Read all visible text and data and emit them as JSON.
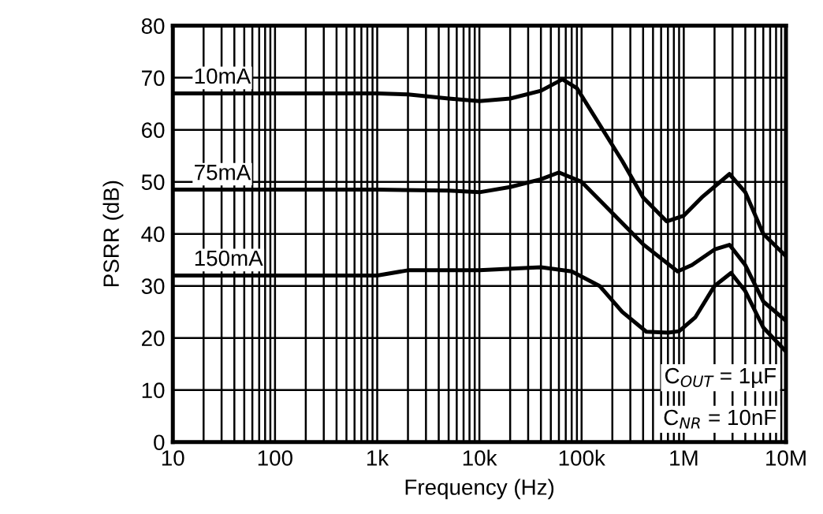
{
  "chart_data": {
    "type": "line",
    "xlabel": "Frequency (Hz)",
    "ylabel": "PSRR (dB)",
    "log": "x",
    "grid": true,
    "legend": false,
    "marker": "none",
    "line_style": "solid",
    "xlim": [
      10,
      10000000
    ],
    "ylim": [
      0,
      80
    ],
    "xticks": [
      10,
      100,
      {
        "value": 1000,
        "label": "1k"
      },
      {
        "value": 10000,
        "label": "10k"
      },
      {
        "value": 100000,
        "label": "100k"
      },
      {
        "value": 1000000,
        "label": "1M"
      },
      {
        "value": 10000000,
        "label": "10M"
      }
    ],
    "yticks": [
      0,
      10,
      20,
      30,
      40,
      50,
      60,
      70,
      80
    ],
    "series": [
      {
        "name": "10mA",
        "color": "#000000",
        "x": [
          10,
          100,
          1000,
          2000,
          5000,
          10000,
          20000,
          40000,
          65000,
          90000,
          150000,
          250000,
          400000,
          680000,
          1000000,
          1500000,
          2800000,
          4000000,
          6000000,
          10000000
        ],
        "values": [
          67,
          67,
          67,
          66.8,
          66,
          65.5,
          66,
          67.5,
          69.7,
          68,
          61,
          54,
          47,
          42.4,
          43.5,
          47,
          51.5,
          48,
          40,
          35.7
        ]
      },
      {
        "name": "75mA",
        "color": "#000000",
        "x": [
          10,
          100,
          1000,
          5000,
          10000,
          20000,
          40000,
          60000,
          100000,
          200000,
          400000,
          870000,
          1200000,
          2000000,
          2800000,
          4000000,
          6000000,
          10000000
        ],
        "values": [
          48.5,
          48.5,
          48.5,
          48.3,
          48,
          49,
          50.5,
          51.8,
          50,
          44,
          38,
          32.8,
          34,
          37,
          37.9,
          34,
          27,
          23.3
        ]
      },
      {
        "name": "150mA",
        "color": "#000000",
        "x": [
          10,
          100,
          1000,
          2000,
          10000,
          40000,
          80000,
          150000,
          250000,
          430000,
          700000,
          900000,
          1300000,
          2000000,
          2900000,
          4000000,
          6000000,
          10000000
        ],
        "values": [
          32,
          32,
          32,
          33,
          33,
          33.6,
          32.8,
          30,
          25,
          21.2,
          21,
          21.3,
          24,
          30,
          32.5,
          29,
          22,
          17.4
        ]
      }
    ],
    "annotations": [
      "C$_{OUT}$ = 1µF",
      "C$_{NR}$ = 10nF"
    ]
  }
}
